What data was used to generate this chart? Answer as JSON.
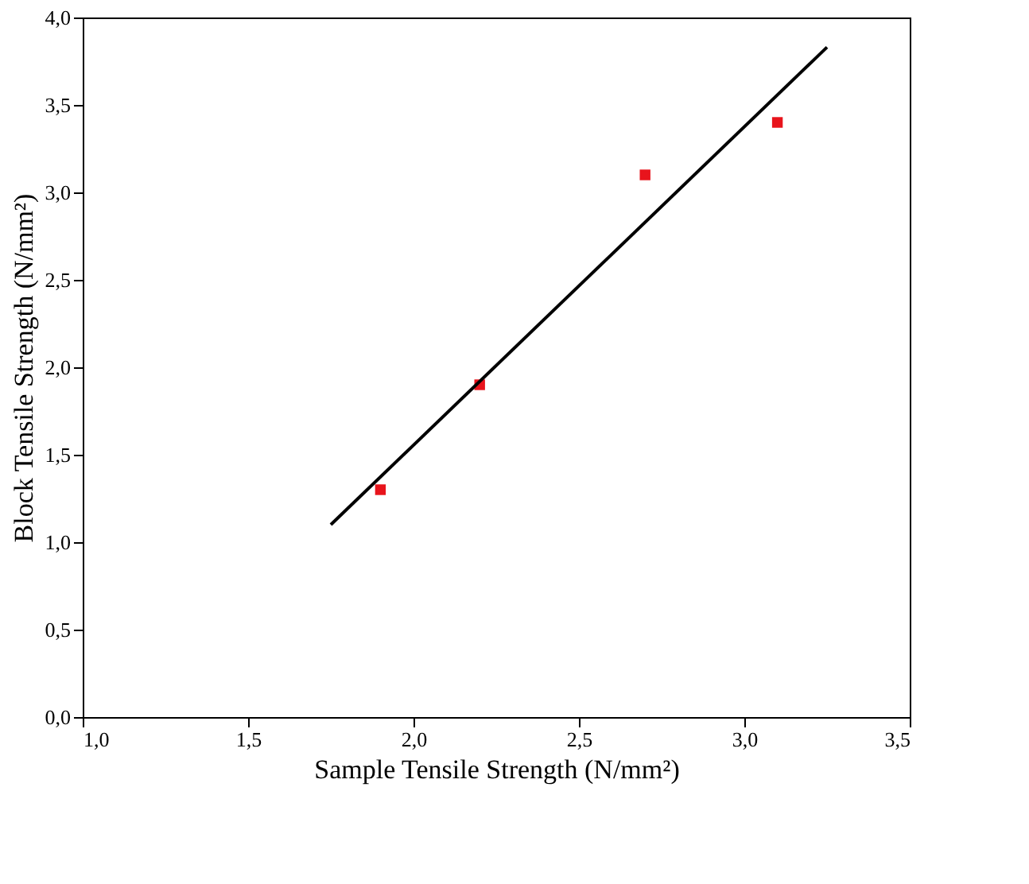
{
  "chart_data": {
    "type": "scatter",
    "xlabel": "Sample Tensile Strength (N/mm²)",
    "ylabel": "Block Tensile Strength (N/mm²)",
    "xlim": [
      1.0,
      3.5
    ],
    "ylim": [
      0.0,
      4.0
    ],
    "xticks": [
      {
        "value": 1.0,
        "label": "1,0"
      },
      {
        "value": 1.5,
        "label": "1,5"
      },
      {
        "value": 2.0,
        "label": "2,0"
      },
      {
        "value": 2.5,
        "label": "2,5"
      },
      {
        "value": 3.0,
        "label": "3,0"
      },
      {
        "value": 3.5,
        "label": "3,5"
      }
    ],
    "yticks": [
      {
        "value": 0.0,
        "label": "0,0"
      },
      {
        "value": 0.5,
        "label": "0,5"
      },
      {
        "value": 1.0,
        "label": "1,0"
      },
      {
        "value": 1.5,
        "label": "1,5"
      },
      {
        "value": 2.0,
        "label": "2,0"
      },
      {
        "value": 2.5,
        "label": "2,5"
      },
      {
        "value": 3.0,
        "label": "3,0"
      },
      {
        "value": 3.5,
        "label": "3,5"
      },
      {
        "value": 4.0,
        "label": "4,0"
      }
    ],
    "grid": false,
    "series": [
      {
        "marker": "square",
        "color": "#e8141c",
        "x": [
          1.9,
          2.2,
          2.7,
          3.1
        ],
        "values": [
          1.3,
          1.9,
          3.1,
          3.4
        ]
      },
      {
        "type": "line",
        "color": "#000000",
        "x": [
          1.75,
          3.25
        ],
        "values": [
          1.1,
          3.83
        ]
      }
    ]
  }
}
